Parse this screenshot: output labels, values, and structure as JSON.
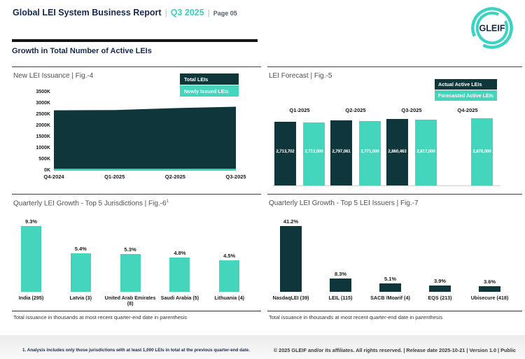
{
  "header": {
    "title": "Global LEI System Business Report",
    "separator": "|",
    "period": "Q3 2025",
    "page": "Page 05",
    "logo_text": "GLEIF"
  },
  "section": {
    "title": "Growth in Total Number of Active LEIs"
  },
  "colors": {
    "dark": "#0e363b",
    "teal": "#44d5bc",
    "logo_teal": "#3ed2c3",
    "navy": "#16294d",
    "period_teal": "#3bcec0"
  },
  "chart_data": [
    {
      "id": "fig4",
      "type": "area",
      "title": "New LEI Issuance | Fig.-4",
      "legend": [
        {
          "label": "Total LEIs",
          "color": "dark"
        },
        {
          "label": "Newly Issued LEIs",
          "color": "teal"
        }
      ],
      "x": [
        "Q4-2024",
        "Q1-2025",
        "Q2-2025",
        "Q3-2025"
      ],
      "series": [
        {
          "name": "Total LEIs",
          "values_k": [
            2700,
            2714,
            2797,
            2860
          ]
        },
        {
          "name": "Newly Issued LEIs",
          "values_k": [
            90,
            90,
            90,
            90
          ]
        }
      ],
      "ylim_k": [
        0,
        3500
      ],
      "yticks": [
        "3500K",
        "3000K",
        "2500K",
        "2000K",
        "1500K",
        "1000K",
        "500K",
        "0K"
      ],
      "grid": false,
      "legend_position": "top-right"
    },
    {
      "id": "fig5",
      "type": "bar",
      "title": "LEI Forecast | Fig.-5",
      "legend": [
        {
          "label": "Actual Active LEIs",
          "color": "dark"
        },
        {
          "label": "Forecasted Active LEIs",
          "color": "teal"
        }
      ],
      "categories": [
        "Q1-2025",
        "Q2-2025",
        "Q3-2025",
        "Q4-2025"
      ],
      "series": [
        {
          "name": "Actual Active LEIs",
          "values": [
            2713702,
            2797061,
            2860463,
            null
          ],
          "labels": [
            "2,713,702",
            "2,797,061",
            "2,860,463",
            null
          ]
        },
        {
          "name": "Forecasted Active LEIs",
          "values": [
            2713000,
            2771000,
            2817000,
            2878000
          ],
          "labels": [
            "2,713,000",
            "2,771,000",
            "2,817,000",
            "2,878,000"
          ]
        }
      ],
      "ylim": [
        0,
        2878000
      ],
      "grid": false,
      "legend_position": "top-right"
    },
    {
      "id": "fig6",
      "type": "bar",
      "title": "Quarterly LEI Growth - Top 5 Jurisdictions | Fig.-6",
      "title_superscript": "1",
      "bar_color": "teal",
      "categories": [
        "India (295)",
        "Latvia (3)",
        "United Arab Emirates (8)",
        "Saudi Arabia (5)",
        "Lithuania (4)"
      ],
      "values_pct": [
        9.3,
        5.4,
        5.3,
        4.8,
        4.5
      ],
      "labels": [
        "9.3%",
        "5.4%",
        "5.3%",
        "4.8%",
        "4.5%"
      ],
      "footnote": "Total issuance in thousands at most recent quarter-end date in parenthesis",
      "grid": false
    },
    {
      "id": "fig7",
      "type": "bar",
      "title": "Quarterly LEI Growth - Top 5 LEI Issuers | Fig.-7",
      "title_superscript": "",
      "bar_color": "dark",
      "categories": [
        "NasdaqLEI (39)",
        "LEIL (115)",
        "SACB /Moarif (4)",
        "EQS (213)",
        "Ubisecure (418)"
      ],
      "values_pct": [
        41.2,
        8.3,
        5.1,
        3.9,
        3.6
      ],
      "labels": [
        "41.2%",
        "8.3%",
        "5.1%",
        "3.9%",
        "3.6%"
      ],
      "footnote": "Total issuance in thousands at most recent quarter-end date in parenthesis",
      "grid": false
    }
  ],
  "footer": {
    "note": "1. Analysis includes only those jurisdictions with at least 1,000 LEIs in total at the previous quarter-end date.",
    "copyright": "© 2025 GLEIF and/or its affiliates. All rights reserved. | Release date 2025-10-21 | Version 1.0 | Public"
  }
}
